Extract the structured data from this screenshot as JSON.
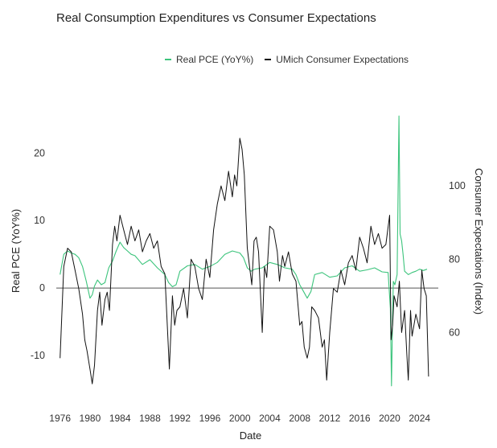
{
  "chart_data": {
    "type": "line",
    "title": "Real Consumption Expenditures vs Consumer Expectations",
    "xlabel": "Date",
    "ylabel_left": "Real PCE (YoY%)",
    "ylabel_right": "Consumer Expectations (Index)",
    "xlim": [
      1975.5,
      2026.5
    ],
    "ylim_left": [
      -15,
      26
    ],
    "ylim_right": [
      44.5,
      120
    ],
    "x_ticks": [
      "1976",
      "1980",
      "1984",
      "1988",
      "1992",
      "1996",
      "2000",
      "2004",
      "2008",
      "2012",
      "2016",
      "2020",
      "2024"
    ],
    "y_ticks_left": [
      "-10",
      "0",
      "10",
      "20"
    ],
    "y_ticks_right": [
      "60",
      "80",
      "100"
    ],
    "grid": false,
    "zero_line": true,
    "legend_position": "top-center",
    "colors": {
      "pce": "#3cc47c",
      "umich": "#111111"
    },
    "series": [
      {
        "name": "Real PCE (YoY%)",
        "axis": "left",
        "x": [
          1976.0,
          1976.5,
          1977.0,
          1977.5,
          1978.0,
          1978.5,
          1979.0,
          1979.5,
          1980.0,
          1980.3,
          1980.6,
          1981.0,
          1981.5,
          1982.0,
          1982.5,
          1983.0,
          1983.5,
          1984.0,
          1984.5,
          1985.0,
          1985.5,
          1986.0,
          1987.0,
          1988.0,
          1989.0,
          1990.0,
          1990.5,
          1991.0,
          1991.5,
          1992.0,
          1993.0,
          1994.0,
          1995.0,
          1996.0,
          1997.0,
          1998.0,
          1999.0,
          2000.0,
          2000.5,
          2001.0,
          2001.5,
          2002.0,
          2003.0,
          2004.0,
          2005.0,
          2006.0,
          2007.0,
          2007.5,
          2008.0,
          2008.5,
          2009.0,
          2009.5,
          2010.0,
          2011.0,
          2012.0,
          2013.0,
          2014.0,
          2015.0,
          2016.0,
          2017.0,
          2018.0,
          2019.0,
          2019.8,
          2020.1,
          2020.25,
          2020.4,
          2020.5,
          2020.7,
          2021.0,
          2021.25,
          2021.4,
          2021.6,
          2021.8,
          2022.0,
          2022.5,
          2023.0,
          2023.5,
          2024.0,
          2024.5,
          2025.0
        ],
        "values": [
          2.0,
          5.0,
          5.5,
          5.2,
          5.0,
          4.5,
          3.2,
          1.0,
          -1.5,
          -1.0,
          0.3,
          1.2,
          0.5,
          0.8,
          3.0,
          4.0,
          5.5,
          6.8,
          6.0,
          5.5,
          5.0,
          4.8,
          3.5,
          4.2,
          3.0,
          2.0,
          0.8,
          0.2,
          0.5,
          2.5,
          3.3,
          3.5,
          2.8,
          3.2,
          3.8,
          5.0,
          5.5,
          5.2,
          4.5,
          3.0,
          2.5,
          2.8,
          3.0,
          3.8,
          3.5,
          3.0,
          2.8,
          2.0,
          0.5,
          -0.5,
          -1.5,
          -0.5,
          2.0,
          2.3,
          1.6,
          1.8,
          3.0,
          3.3,
          2.5,
          2.7,
          3.0,
          2.4,
          2.3,
          -3.0,
          -14.5,
          -4.0,
          1.0,
          0.5,
          2.0,
          25.5,
          8.0,
          7.0,
          5.0,
          2.5,
          2.0,
          2.3,
          2.5,
          2.8,
          2.6,
          2.8
        ]
      },
      {
        "name": "UMich Consumer Expectations",
        "axis": "right",
        "x": [
          1976.0,
          1976.5,
          1977.0,
          1977.5,
          1978.0,
          1978.5,
          1979.0,
          1979.3,
          1979.6,
          1980.0,
          1980.3,
          1980.6,
          1981.0,
          1981.3,
          1981.6,
          1982.0,
          1982.3,
          1982.6,
          1983.0,
          1983.3,
          1983.6,
          1984.0,
          1984.5,
          1985.0,
          1985.5,
          1986.0,
          1986.5,
          1987.0,
          1987.5,
          1988.0,
          1988.5,
          1989.0,
          1989.5,
          1990.0,
          1990.3,
          1990.6,
          1991.0,
          1991.3,
          1991.6,
          1992.0,
          1992.5,
          1993.0,
          1993.5,
          1994.0,
          1994.5,
          1995.0,
          1995.5,
          1996.0,
          1996.5,
          1997.0,
          1997.5,
          1998.0,
          1998.5,
          1999.0,
          1999.3,
          1999.6,
          2000.0,
          2000.3,
          2000.6,
          2001.0,
          2001.3,
          2001.6,
          2001.9,
          2002.2,
          2002.5,
          2003.0,
          2003.3,
          2003.6,
          2004.0,
          2004.5,
          2005.0,
          2005.3,
          2005.7,
          2006.0,
          2006.5,
          2007.0,
          2007.5,
          2008.0,
          2008.3,
          2008.6,
          2009.0,
          2009.3,
          2009.6,
          2010.0,
          2010.5,
          2011.0,
          2011.3,
          2011.6,
          2012.0,
          2012.5,
          2013.0,
          2013.5,
          2014.0,
          2014.5,
          2015.0,
          2015.5,
          2016.0,
          2016.5,
          2017.0,
          2017.5,
          2018.0,
          2018.5,
          2019.0,
          2019.5,
          2020.0,
          2020.2,
          2020.4,
          2020.6,
          2021.0,
          2021.3,
          2021.6,
          2022.0,
          2022.3,
          2022.5,
          2022.8,
          2023.0,
          2023.5,
          2024.0,
          2024.3,
          2024.6,
          2024.9,
          2025.2
        ],
        "values": [
          53,
          78,
          83,
          82,
          77,
          72,
          65,
          58,
          55,
          50,
          46,
          51,
          66,
          71,
          62,
          69,
          71,
          66,
          84,
          89,
          85,
          92,
          88,
          84,
          89,
          85,
          88,
          82,
          85,
          87,
          83,
          85,
          78,
          76,
          63,
          50,
          70,
          62,
          66,
          67,
          72,
          64,
          80,
          78,
          72,
          69,
          80,
          75,
          88,
          95,
          100,
          96,
          104,
          97,
          103,
          100,
          113,
          110,
          103,
          83,
          78,
          73,
          85,
          86,
          82,
          60,
          78,
          75,
          89,
          88,
          82,
          74,
          81,
          78,
          82,
          76,
          74,
          62,
          63,
          56,
          53,
          56,
          67,
          66,
          64,
          56,
          58,
          47,
          60,
          72,
          71,
          77,
          73,
          79,
          81,
          77,
          86,
          83,
          79,
          89,
          84,
          87,
          83,
          84,
          92,
          58,
          62,
          70,
          67,
          74,
          60,
          66,
          54,
          47,
          66,
          59,
          65,
          61,
          77,
          72,
          70,
          48
        ]
      }
    ]
  }
}
